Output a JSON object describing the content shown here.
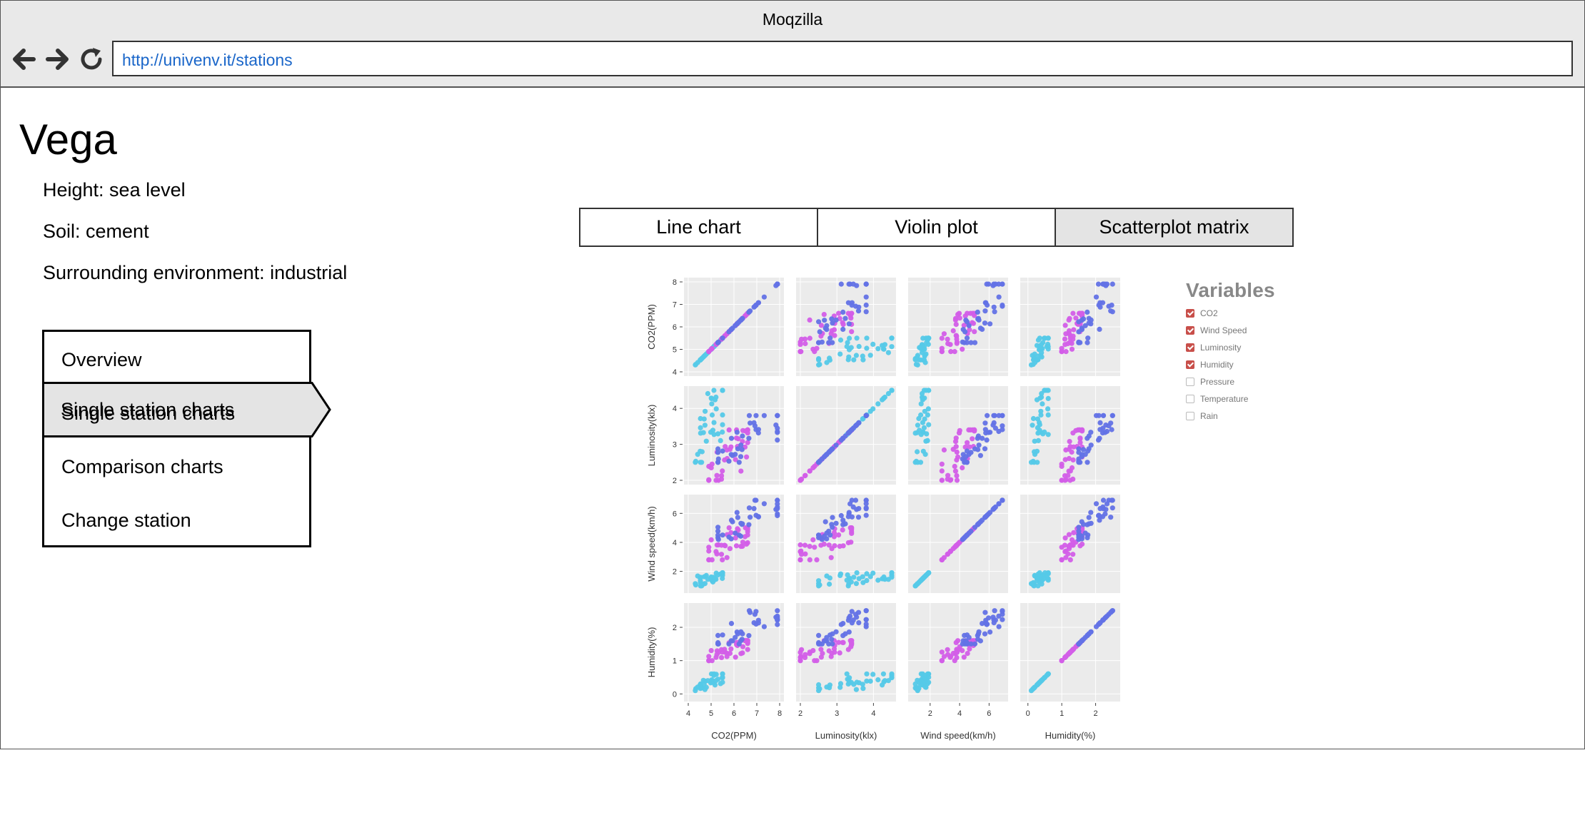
{
  "browser": {
    "title": "Moqzilla",
    "url": "http://univenv.it/stations"
  },
  "station": {
    "name": "Vega",
    "height": "Height: sea level",
    "soil": "Soil: cement",
    "environment": "Surrounding environment: industrial"
  },
  "menu": {
    "items": [
      {
        "label": "Overview",
        "active": false
      },
      {
        "label": "Single station charts",
        "active": true
      },
      {
        "label": "Comparison charts",
        "active": false
      },
      {
        "label": "Change station",
        "active": false
      }
    ]
  },
  "chart_tabs": [
    {
      "label": "Line chart",
      "active": false
    },
    {
      "label": "Violin plot",
      "active": false
    },
    {
      "label": "Scatterplot matrix",
      "active": true
    }
  ],
  "legend": {
    "title": "Variables",
    "items": [
      {
        "label": "CO2",
        "checked": true
      },
      {
        "label": "Wind Speed",
        "checked": true
      },
      {
        "label": "Luminosity",
        "checked": true
      },
      {
        "label": "Humidity",
        "checked": true
      },
      {
        "label": "Pressure",
        "checked": false
      },
      {
        "label": "Temperature",
        "checked": false
      },
      {
        "label": "Rain",
        "checked": false
      }
    ]
  },
  "chart_data": {
    "type": "scatter",
    "variables": [
      {
        "label": "CO2(PPM)",
        "range": [
          4,
          8
        ],
        "ticks": [
          4,
          5,
          6,
          7,
          8
        ]
      },
      {
        "label": "Luminosity(klx)",
        "range": [
          2,
          4.5
        ],
        "ticks": [
          2,
          3,
          4
        ]
      },
      {
        "label": "Wind speed(km/h)",
        "range": [
          0.8,
          7
        ],
        "ticks": [
          2,
          4,
          6
        ]
      },
      {
        "label": "Humidity(%)",
        "range": [
          -0.1,
          2.6
        ],
        "ticks": [
          0,
          1,
          2
        ]
      }
    ],
    "cluster_colors": [
      "#55c9e8",
      "#d35ee8",
      "#6372e6"
    ],
    "clusters": [
      {
        "co2": [
          4.2,
          5.5
        ],
        "lum": [
          2.5,
          4.5
        ],
        "wind": [
          1.0,
          1.9
        ],
        "hum": [
          0.1,
          0.6
        ]
      },
      {
        "co2": [
          4.9,
          6.6
        ],
        "lum": [
          2.0,
          3.4
        ],
        "wind": [
          2.8,
          5.0
        ],
        "hum": [
          1.0,
          1.6
        ]
      },
      {
        "co2": [
          5.3,
          7.9
        ],
        "lum": [
          2.5,
          3.8
        ],
        "wind": [
          4.2,
          6.9
        ],
        "hum": [
          1.5,
          2.5
        ]
      }
    ]
  }
}
